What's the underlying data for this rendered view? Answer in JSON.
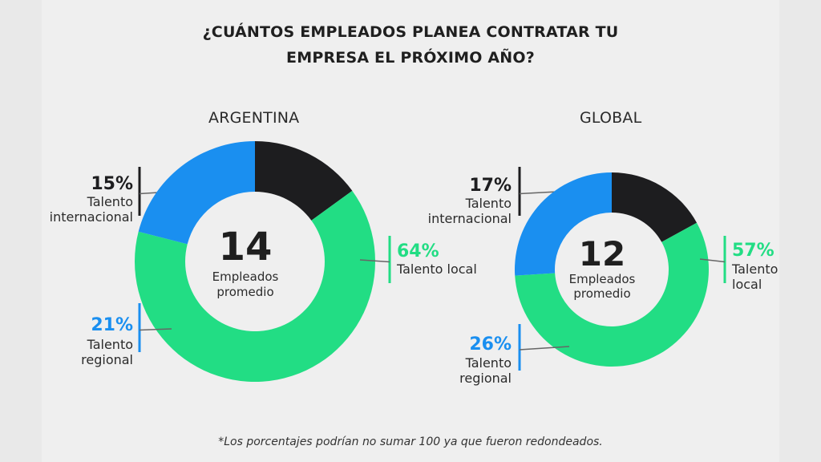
{
  "title": {
    "line1": "¿CUÁNTOS EMPLEADOS PLANEA CONTRATAR TU",
    "line2": "EMPRESA EL PRÓXIMO AÑO?"
  },
  "footnote": "*Los porcentajes podrían no sumar 100 ya que fueron redondeados.",
  "colors": {
    "local": "#22dd84",
    "international": "#1d1d1f",
    "regional": "#1a8ff0",
    "text": "#1f1f1f",
    "leader": "#666666"
  },
  "chart_data": [
    {
      "type": "pie",
      "title": "ARGENTINA",
      "center_value": "14",
      "center_label_1": "Empleados",
      "center_label_2": "promedio",
      "slices": [
        {
          "key": "international",
          "value": 15,
          "percent_label": "15%",
          "label_lines": [
            "Talento",
            "internacional"
          ]
        },
        {
          "key": "local",
          "value": 64,
          "percent_label": "64%",
          "label_lines": [
            "Talento local"
          ]
        },
        {
          "key": "regional",
          "value": 21,
          "percent_label": "21%",
          "label_lines": [
            "Talento",
            "regional"
          ]
        }
      ]
    },
    {
      "type": "pie",
      "title": "GLOBAL",
      "center_value": "12",
      "center_label_1": "Empleados",
      "center_label_2": "promedio",
      "slices": [
        {
          "key": "international",
          "value": 17,
          "percent_label": "17%",
          "label_lines": [
            "Talento",
            "internacional"
          ]
        },
        {
          "key": "local",
          "value": 57,
          "percent_label": "57%",
          "label_lines": [
            "Talento",
            "local"
          ]
        },
        {
          "key": "regional",
          "value": 26,
          "percent_label": "26%",
          "label_lines": [
            "Talento",
            "regional"
          ]
        }
      ]
    }
  ]
}
